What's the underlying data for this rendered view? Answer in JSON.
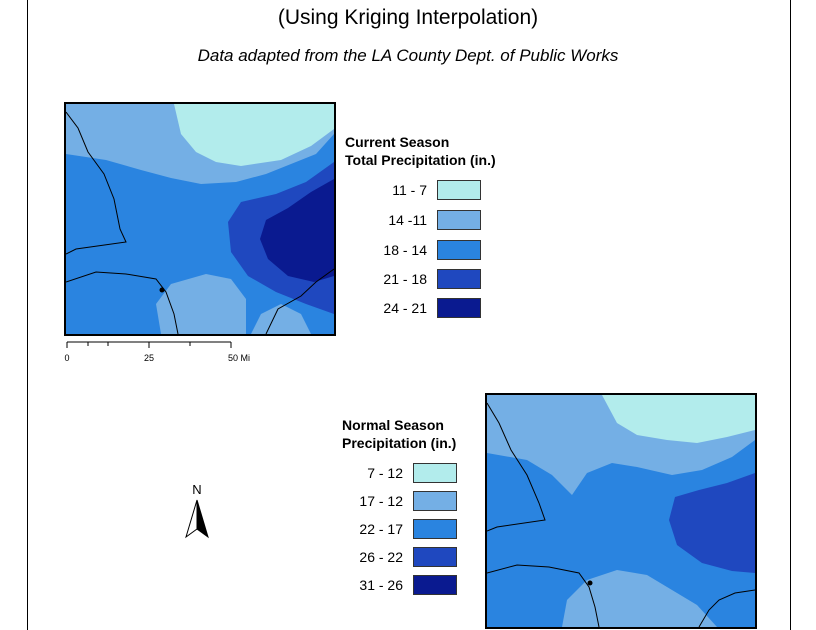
{
  "title": "(Using Kriging Interpolation)",
  "subtitle": "Data adapted from the LA County Dept. of Public Works",
  "colors": {
    "class1": "#b2ecec",
    "class2": "#74afe5",
    "class3": "#2a84e0",
    "class4": "#1f48bf",
    "class5": "#0a1a90"
  },
  "legend_current": {
    "title_line1": "Current Season",
    "title_line2": "Total Precipitation (in.)",
    "items": [
      {
        "label": "11 - 7",
        "color": "#b2ecec"
      },
      {
        "label": "14 -11",
        "color": "#74afe5"
      },
      {
        "label": "18 - 14",
        "color": "#2a84e0"
      },
      {
        "label": "21 - 18",
        "color": "#1f48bf"
      },
      {
        "label": "24 - 21",
        "color": "#0a1a90"
      }
    ]
  },
  "legend_normal": {
    "title_line1": "Normal Season",
    "title_line2": "Precipitation (in.)",
    "items": [
      {
        "label": "7 - 12",
        "color": "#b2ecec"
      },
      {
        "label": "17 - 12",
        "color": "#74afe5"
      },
      {
        "label": "22 - 17",
        "color": "#2a84e0"
      },
      {
        "label": "26 - 22",
        "color": "#1f48bf"
      },
      {
        "label": "31 - 26",
        "color": "#0a1a90"
      }
    ]
  },
  "scale_bar": {
    "labels": [
      "0",
      "25",
      "50 Mi"
    ]
  },
  "north_arrow": {
    "label": "N",
    "icon": "north-arrow-icon"
  }
}
